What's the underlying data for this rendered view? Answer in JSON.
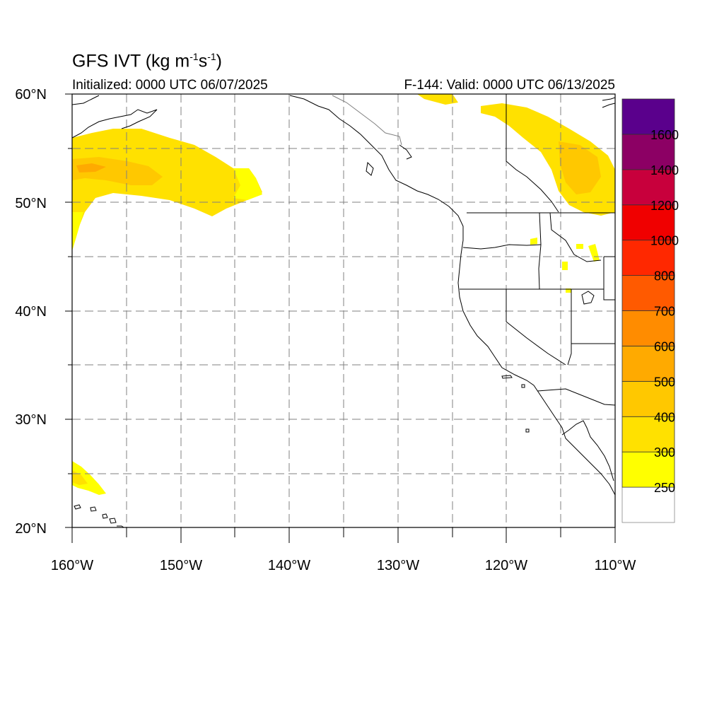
{
  "title": {
    "main": "GFS IVT (kg m",
    "sup1": "-1",
    "mid": "s",
    "sup2": "-1",
    "end": ")"
  },
  "init_text": "Initialized: 0000 UTC 06/07/2025",
  "valid_text": "F-144: Valid: 0000 UTC 06/13/2025",
  "map": {
    "lon_range": [
      -160,
      -110
    ],
    "lat_range": [
      20,
      60
    ],
    "grid": true,
    "lat_labels": [
      "60°N",
      "50°N",
      "40°N",
      "30°N",
      "20°N"
    ],
    "lon_labels": [
      "160°W",
      "150°W",
      "140°W",
      "130°W",
      "120°W",
      "110°W"
    ]
  },
  "colorbar": {
    "levels": [
      "250",
      "300",
      "400",
      "500",
      "600",
      "700",
      "800",
      "1000",
      "1200",
      "1400",
      "1600"
    ],
    "colors": [
      "#ffffff",
      "#ffff00",
      "#ffe100",
      "#ffc800",
      "#ffaa00",
      "#ff8c00",
      "#ff5a00",
      "#ff2800",
      "#f00000",
      "#c8003c",
      "#8c0064",
      "#5a008c"
    ]
  },
  "ivt_areas": [
    {
      "name": "gulf-of-alaska-plume",
      "value": "300"
    },
    {
      "name": "gulf-of-alaska-core",
      "value": "400"
    },
    {
      "name": "canada-rockies-plume",
      "value": "300"
    },
    {
      "name": "canada-rockies-core",
      "value": "400"
    },
    {
      "name": "hawaii-plume",
      "value": "250"
    }
  ]
}
